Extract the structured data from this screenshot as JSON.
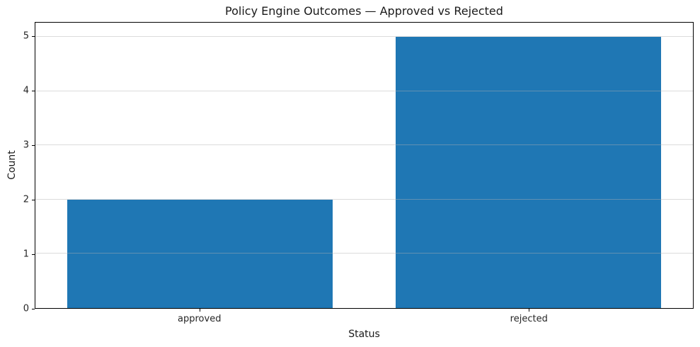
{
  "chart_data": {
    "type": "bar",
    "title": "Policy Engine Outcomes — Approved vs Rejected",
    "xlabel": "Status",
    "ylabel": "Count",
    "categories": [
      "approved",
      "rejected"
    ],
    "values": [
      2,
      5
    ],
    "yticks": [
      0,
      1,
      2,
      3,
      4,
      5
    ],
    "ylim": [
      0,
      5.26
    ],
    "bar_color": "#1f77b4",
    "grid": "horizontal",
    "grid_color": "rgba(176,176,176,0.45)",
    "legend": "none",
    "background_color": "#ffffff"
  }
}
